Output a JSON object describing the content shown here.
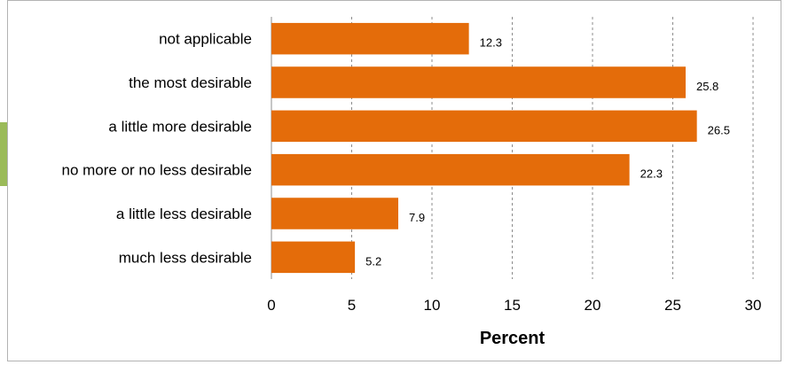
{
  "chart_data": {
    "type": "bar",
    "orientation": "horizontal",
    "categories": [
      "not applicable",
      "the most desirable",
      "a little more desirable",
      "no more or no less desirable",
      "a little less desirable",
      "much less desirable"
    ],
    "values": [
      12.3,
      25.8,
      26.5,
      22.3,
      7.9,
      5.2
    ],
    "data_labels": [
      "12.3",
      "25.8",
      "26.5",
      "22.3",
      "7.9",
      "5.2"
    ],
    "xlabel": "Percent",
    "ylabel": "",
    "xlim": [
      0,
      30
    ],
    "xticks": [
      0,
      5,
      10,
      15,
      20,
      25,
      30
    ],
    "xtick_labels": [
      "0",
      "5",
      "10",
      "15",
      "20",
      "25",
      "30"
    ],
    "grid": "vertical dashed",
    "legend": "none",
    "bar_color": "#e46c0a",
    "grid_color": "#8c8c8c"
  }
}
